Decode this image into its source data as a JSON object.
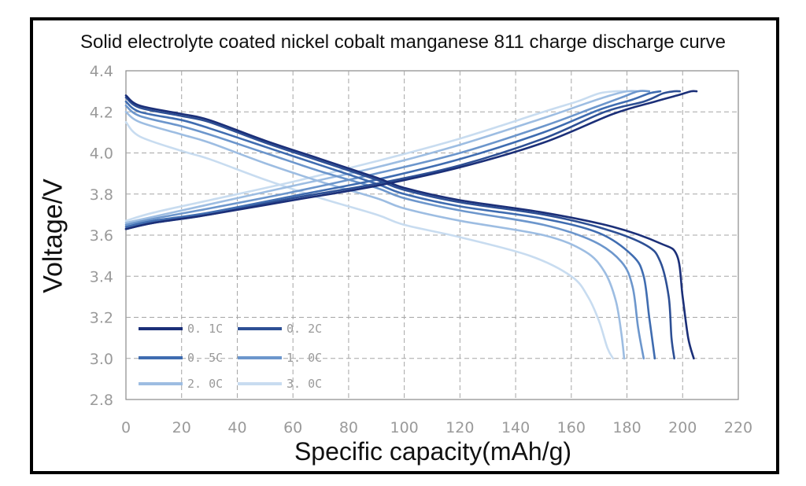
{
  "chart_data": {
    "type": "line",
    "title": "Solid electrolyte coated nickel cobalt manganese 811 charge discharge curve",
    "xlabel": "Specific capacity(mAh/g)",
    "ylabel": "Voltage/V",
    "xlim": [
      0,
      220
    ],
    "ylim": [
      2.8,
      4.4
    ],
    "x_ticks": [
      "0",
      "20",
      "40",
      "60",
      "80",
      "100",
      "120",
      "140",
      "160",
      "180",
      "200",
      "220"
    ],
    "y_ticks": [
      "2.8",
      "3.0",
      "3.2",
      "3.4",
      "3.6",
      "3.8",
      "4.0",
      "4.2",
      "4.4"
    ],
    "grid": true,
    "legend_position": "bottom-left",
    "series": [
      {
        "name": "0. 1C",
        "color": "#1b2f78",
        "charge": [
          [
            0,
            3.63
          ],
          [
            10,
            3.66
          ],
          [
            30,
            3.7
          ],
          [
            60,
            3.77
          ],
          [
            90,
            3.84
          ],
          [
            120,
            3.93
          ],
          [
            150,
            4.05
          ],
          [
            175,
            4.19
          ],
          [
            190,
            4.25
          ],
          [
            198,
            4.28
          ],
          [
            203,
            4.3
          ],
          [
            205,
            4.3
          ]
        ],
        "discharge": [
          [
            0,
            4.28
          ],
          [
            5,
            4.23
          ],
          [
            20,
            4.19
          ],
          [
            30,
            4.16
          ],
          [
            50,
            4.06
          ],
          [
            70,
            3.97
          ],
          [
            90,
            3.88
          ],
          [
            100,
            3.83
          ],
          [
            120,
            3.77
          ],
          [
            150,
            3.71
          ],
          [
            175,
            3.64
          ],
          [
            192,
            3.56
          ],
          [
            198,
            3.5
          ],
          [
            200,
            3.3
          ],
          [
            202,
            3.1
          ],
          [
            204,
            3.0
          ]
        ]
      },
      {
        "name": "0. 2C",
        "color": "#2d4f94",
        "charge": [
          [
            0,
            3.63
          ],
          [
            10,
            3.66
          ],
          [
            30,
            3.7
          ],
          [
            60,
            3.78
          ],
          [
            90,
            3.85
          ],
          [
            120,
            3.94
          ],
          [
            150,
            4.07
          ],
          [
            172,
            4.2
          ],
          [
            186,
            4.25
          ],
          [
            193,
            4.29
          ],
          [
            197,
            4.3
          ],
          [
            199,
            4.3
          ]
        ],
        "discharge": [
          [
            0,
            4.27
          ],
          [
            5,
            4.22
          ],
          [
            20,
            4.18
          ],
          [
            30,
            4.15
          ],
          [
            50,
            4.05
          ],
          [
            70,
            3.96
          ],
          [
            90,
            3.87
          ],
          [
            100,
            3.82
          ],
          [
            120,
            3.76
          ],
          [
            150,
            3.7
          ],
          [
            172,
            3.63
          ],
          [
            187,
            3.55
          ],
          [
            192,
            3.47
          ],
          [
            195,
            3.3
          ],
          [
            196,
            3.1
          ],
          [
            197,
            3.0
          ]
        ]
      },
      {
        "name": "0. 5C",
        "color": "#3f6cb0",
        "charge": [
          [
            0,
            3.64
          ],
          [
            10,
            3.67
          ],
          [
            30,
            3.71
          ],
          [
            60,
            3.79
          ],
          [
            90,
            3.87
          ],
          [
            120,
            3.97
          ],
          [
            150,
            4.1
          ],
          [
            170,
            4.21
          ],
          [
            182,
            4.26
          ],
          [
            188,
            4.29
          ],
          [
            192,
            4.3
          ]
        ],
        "discharge": [
          [
            0,
            4.25
          ],
          [
            5,
            4.2
          ],
          [
            20,
            4.16
          ],
          [
            30,
            4.12
          ],
          [
            50,
            4.03
          ],
          [
            70,
            3.94
          ],
          [
            90,
            3.85
          ],
          [
            100,
            3.8
          ],
          [
            120,
            3.74
          ],
          [
            150,
            3.68
          ],
          [
            170,
            3.61
          ],
          [
            182,
            3.5
          ],
          [
            186,
            3.4
          ],
          [
            188,
            3.2
          ],
          [
            190,
            3.0
          ]
        ]
      },
      {
        "name": "1. 0C",
        "color": "#6c96cc",
        "charge": [
          [
            0,
            3.65
          ],
          [
            10,
            3.68
          ],
          [
            30,
            3.73
          ],
          [
            60,
            3.81
          ],
          [
            90,
            3.9
          ],
          [
            120,
            4.0
          ],
          [
            150,
            4.13
          ],
          [
            168,
            4.22
          ],
          [
            178,
            4.27
          ],
          [
            184,
            4.3
          ],
          [
            188,
            4.3
          ]
        ],
        "discharge": [
          [
            0,
            4.23
          ],
          [
            5,
            4.18
          ],
          [
            20,
            4.13
          ],
          [
            30,
            4.09
          ],
          [
            50,
            4.0
          ],
          [
            70,
            3.91
          ],
          [
            90,
            3.83
          ],
          [
            100,
            3.78
          ],
          [
            120,
            3.72
          ],
          [
            150,
            3.65
          ],
          [
            168,
            3.57
          ],
          [
            178,
            3.47
          ],
          [
            182,
            3.35
          ],
          [
            184,
            3.15
          ],
          [
            186,
            3.0
          ]
        ]
      },
      {
        "name": "2. 0C",
        "color": "#9dbde2",
        "charge": [
          [
            0,
            3.66
          ],
          [
            10,
            3.69
          ],
          [
            30,
            3.75
          ],
          [
            60,
            3.84
          ],
          [
            90,
            3.93
          ],
          [
            120,
            4.04
          ],
          [
            150,
            4.17
          ],
          [
            165,
            4.24
          ],
          [
            174,
            4.28
          ],
          [
            180,
            4.3
          ],
          [
            184,
            4.3
          ]
        ],
        "discharge": [
          [
            0,
            4.2
          ],
          [
            5,
            4.15
          ],
          [
            20,
            4.09
          ],
          [
            30,
            4.05
          ],
          [
            50,
            3.95
          ],
          [
            70,
            3.86
          ],
          [
            90,
            3.78
          ],
          [
            100,
            3.73
          ],
          [
            120,
            3.67
          ],
          [
            150,
            3.6
          ],
          [
            165,
            3.52
          ],
          [
            172,
            3.42
          ],
          [
            176,
            3.28
          ],
          [
            178,
            3.12
          ],
          [
            179,
            3.0
          ]
        ]
      },
      {
        "name": "3. 0C",
        "color": "#c8dcf0",
        "charge": [
          [
            0,
            3.67
          ],
          [
            10,
            3.71
          ],
          [
            30,
            3.77
          ],
          [
            60,
            3.86
          ],
          [
            90,
            3.96
          ],
          [
            120,
            4.07
          ],
          [
            150,
            4.2
          ],
          [
            162,
            4.25
          ],
          [
            170,
            4.29
          ],
          [
            176,
            4.3
          ],
          [
            180,
            4.3
          ]
        ],
        "discharge": [
          [
            0,
            4.15
          ],
          [
            5,
            4.08
          ],
          [
            20,
            4.01
          ],
          [
            30,
            3.97
          ],
          [
            50,
            3.87
          ],
          [
            70,
            3.78
          ],
          [
            90,
            3.7
          ],
          [
            100,
            3.65
          ],
          [
            120,
            3.59
          ],
          [
            145,
            3.5
          ],
          [
            160,
            3.4
          ],
          [
            166,
            3.3
          ],
          [
            170,
            3.18
          ],
          [
            173,
            3.05
          ],
          [
            175,
            3.0
          ]
        ]
      }
    ]
  }
}
